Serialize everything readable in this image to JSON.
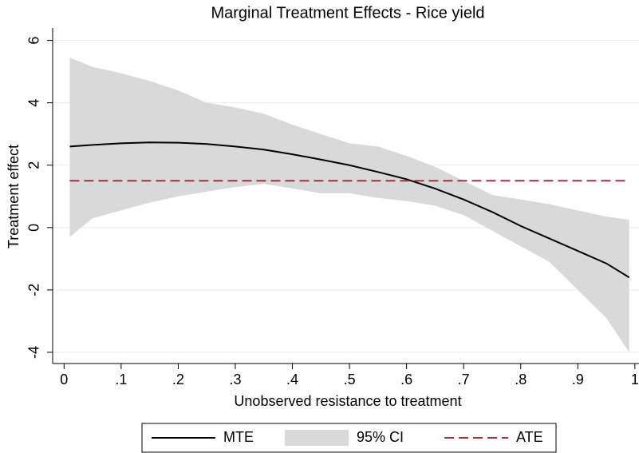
{
  "chart_data": {
    "type": "line",
    "title": "Marginal Treatment Effects - Rice yield",
    "x_label": "Unobserved resistance to treatment",
    "y_label": "Treatment effect",
    "xlim": [
      -0.02,
      1.01
    ],
    "ylim": [
      -4.36,
      6.4
    ],
    "xticks": [
      0,
      {
        "value": 0.1,
        "label": ".1"
      },
      {
        "value": 0.2,
        "label": ".2"
      },
      {
        "value": 0.3,
        "label": ".3"
      },
      {
        "value": 0.4,
        "label": ".4"
      },
      {
        "value": 0.5,
        "label": ".5"
      },
      {
        "value": 0.6,
        "label": ".6"
      },
      {
        "value": 0.7,
        "label": ".7"
      },
      {
        "value": 0.8,
        "label": ".8"
      },
      {
        "value": 0.9,
        "label": ".9"
      },
      1
    ],
    "yticks": [
      -4,
      -2,
      0,
      2,
      4,
      6
    ],
    "grid": true,
    "legend": "bottom",
    "x": [
      0.01,
      0.05,
      0.1,
      0.15,
      0.2,
      0.25,
      0.3,
      0.35,
      0.4,
      0.45,
      0.5,
      0.55,
      0.6,
      0.65,
      0.7,
      0.75,
      0.8,
      0.85,
      0.9,
      0.95,
      0.99
    ],
    "series": [
      {
        "name": "MTE",
        "kind": "line",
        "color": "#000000",
        "values": [
          2.6,
          2.65,
          2.7,
          2.73,
          2.72,
          2.68,
          2.6,
          2.5,
          2.35,
          2.18,
          2.0,
          1.78,
          1.55,
          1.25,
          0.9,
          0.5,
          0.05,
          -0.35,
          -0.75,
          -1.15,
          -1.6
        ]
      },
      {
        "name": "95% CI",
        "kind": "band",
        "color": "#d9d9d9",
        "upper": [
          5.45,
          5.15,
          4.95,
          4.7,
          4.4,
          4.0,
          3.85,
          3.65,
          3.3,
          3.0,
          2.7,
          2.6,
          2.3,
          1.95,
          1.5,
          1.05,
          0.9,
          0.75,
          0.55,
          0.35,
          0.25
        ],
        "lower": [
          -0.3,
          0.3,
          0.55,
          0.8,
          1.0,
          1.15,
          1.3,
          1.4,
          1.25,
          1.1,
          1.1,
          0.95,
          0.85,
          0.7,
          0.4,
          -0.1,
          -0.6,
          -1.1,
          -2.0,
          -2.9,
          -4.0
        ]
      },
      {
        "name": "ATE",
        "kind": "dashed",
        "color": "#a0333f",
        "x": [
          0.01,
          0.99
        ],
        "values": [
          1.5,
          1.5
        ]
      }
    ]
  }
}
